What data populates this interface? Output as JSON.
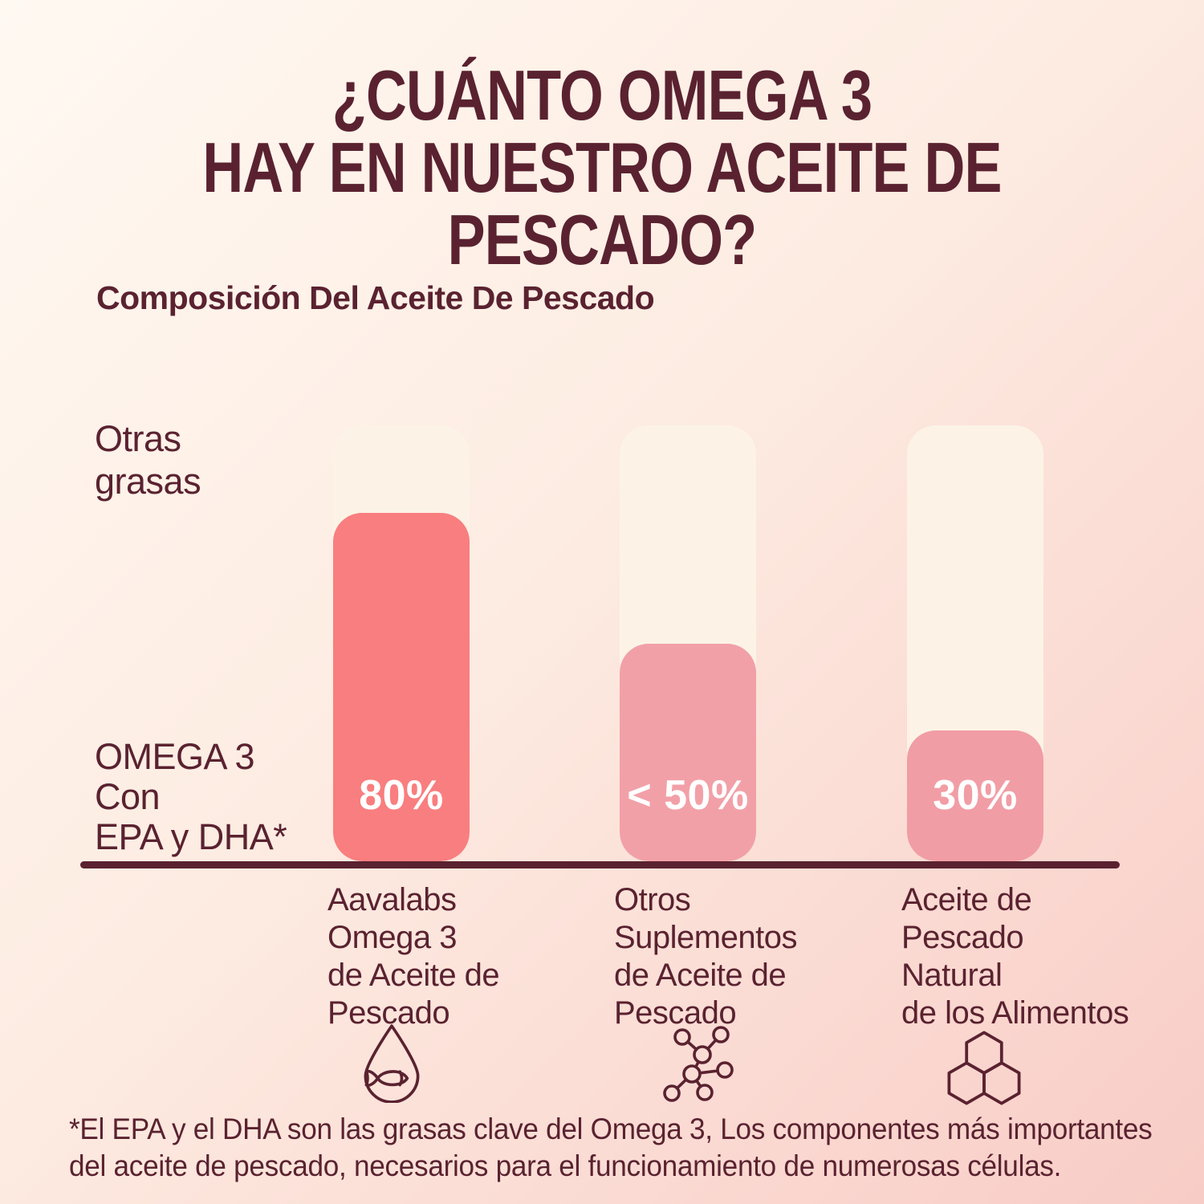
{
  "page": {
    "title_line1": "¿CUÁNTO OMEGA 3",
    "title_line2": "HAY EN NUESTRO ACEITE DE PESCADO?"
  },
  "chart_title": "Composición Del Aceite De Pescado",
  "y_axis": {
    "top_label_line1": "Otras",
    "top_label_line2": "grasas",
    "bottom_label_line1": "OMEGA 3",
    "bottom_label_line2": "Con",
    "bottom_label_line3": "EPA y DHA*"
  },
  "bars": [
    {
      "name": "Aavalabs Omega 3 de Aceite de Pescado",
      "pct": 80,
      "value_label": "80%",
      "fill": "#f97e7f",
      "line1": "Aavalabs",
      "line2": "Omega 3",
      "line3": "de Aceite de",
      "line4": "Pescado",
      "icon": "droplet-fish"
    },
    {
      "name": "Otros Suplementos de Aceite de Pescado",
      "pct": 50,
      "value_label": "< 50%",
      "fill": "#f2a0a8",
      "line1": "Otros",
      "line2": "Suplementos",
      "line3": "de Aceite de",
      "line4": "Pescado",
      "icon": "molecule"
    },
    {
      "name": "Aceite de Pescado Natural de los Alimentos",
      "pct": 30,
      "value_label": "30%",
      "fill": "#f19da5",
      "line1": "Aceite de",
      "line2": "Pescado",
      "line3": "Natural",
      "line4": "de los Alimentos",
      "icon": "hexagon-cluster"
    }
  ],
  "footnote_line1": "*El EPA y el DHA son las grasas clave del Omega 3, Los componentes más importantes",
  "footnote_line2": "del aceite de pescado, necesarios para el funcionamiento de numerosas células.",
  "colors": {
    "text": "#5a2230",
    "bar_track_cream": "#fcf3e6",
    "fill_coral": "#f97e7f",
    "fill_pink": "#f2a0a8",
    "fill_pink_dark": "#f19da5",
    "axis_line": "#5a2230",
    "value_text": "#ffffff",
    "bg_top_left": "#fff9f2",
    "bg_bottom_right": "#f8ccc6"
  },
  "chart_data": {
    "type": "bar",
    "subtype": "stacked_percent_columns",
    "title": "Composición Del Aceite De Pescado",
    "categories": [
      "Aavalabs Omega 3 de Aceite de Pescado",
      "Otros Suplementos de Aceite de Pescado",
      "Aceite de Pescado Natural de los Alimentos"
    ],
    "series": [
      {
        "name": "OMEGA 3 Con EPA y DHA*",
        "values": [
          80,
          50,
          30
        ],
        "value_labels": [
          "80%",
          "< 50%",
          "30%"
        ]
      },
      {
        "name": "Otras grasas",
        "values": [
          20,
          50,
          70
        ]
      }
    ],
    "unit": "%",
    "ylim": [
      0,
      100
    ],
    "grid": false,
    "legend_position": "left-of-bars",
    "footnote": "*El EPA y el DHA son las grasas clave del Omega 3, Los componentes más importantes del aceite de pescado, necesarios para el funcionamiento de numerosas células."
  }
}
